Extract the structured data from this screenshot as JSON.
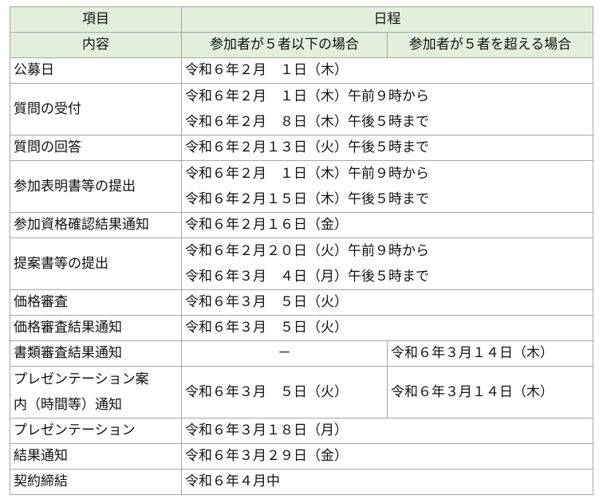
{
  "header": {
    "item": "項目",
    "content": "内容",
    "schedule": "日程",
    "case_five_or_less": "参加者が５者以下の場合",
    "case_over_five": "参加者が５者を超える場合"
  },
  "rows": [
    {
      "item": "公募日",
      "date": "令和６年２月　１日（木）"
    },
    {
      "item": "質問の受付",
      "date_lines": [
        "令和６年２月　１日（木）午前９時から",
        "令和６年２月　８日（木）午後５時まで"
      ]
    },
    {
      "item": "質問の回答",
      "date": "令和６年２月１３日（火）午後５時まで"
    },
    {
      "item": "参加表明書等の提出",
      "date_lines": [
        "令和６年２月　１日（木）午前９時から",
        "令和６年２月１５日（木）午後５時まで"
      ]
    },
    {
      "item": "参加資格確認結果通知",
      "date": "令和６年２月１６日（金）"
    },
    {
      "item": "提案書等の提出",
      "date_lines": [
        "令和６年２月２０日（火）午前９時から",
        "令和６年３月　４日（月）午後５時まで"
      ]
    },
    {
      "item": "価格審査",
      "date": "令和６年３月　５日（火）"
    },
    {
      "item": "価格審査結果通知",
      "date": "令和６年３月　５日（火）"
    },
    {
      "item": "書類審査結果通知",
      "five_or_less": "－",
      "over_five": "令和６年３月１４日（木）"
    },
    {
      "item_lines": [
        "プレゼンテーション案",
        "内（時間等）通知"
      ],
      "five_or_less": "令和６年３月　５日（火）",
      "over_five": "令和６年３月１４日（木）"
    },
    {
      "item": "プレゼンテーション",
      "date": "令和６年３月１８日（月）"
    },
    {
      "item": "結果通知",
      "date": "令和６年３月２９日（金）"
    },
    {
      "item": "契約締結",
      "date": "令和６年４月中"
    }
  ],
  "colors": {
    "header_bg": "#e2efda",
    "border": "#a6a6a6"
  }
}
